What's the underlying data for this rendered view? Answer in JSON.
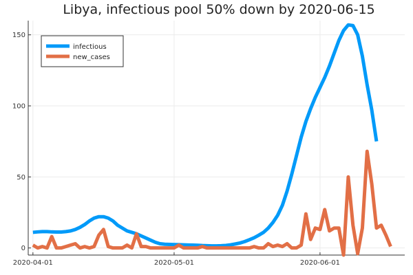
{
  "chart_data": {
    "type": "line",
    "title": "Libya, infectious pool 50% down by 2020-06-15",
    "xlabel": "",
    "ylabel": "",
    "x_start_date": "2020-04-01",
    "x_ticks": [
      "2020-04-01",
      "2020-05-01",
      "2020-06-01"
    ],
    "xlim": [
      "2020-03-31",
      "2020-06-19"
    ],
    "ylim": [
      -5,
      160
    ],
    "y_ticks": [
      0,
      50,
      100,
      150
    ],
    "grid": true,
    "legend_position": "top-left",
    "series": [
      {
        "name": "infectious",
        "color": "#009af9",
        "values": [
          11,
          11.3,
          11.5,
          11.5,
          11.3,
          11.2,
          11.2,
          11.5,
          12,
          13,
          14.5,
          16.5,
          19,
          21,
          22,
          22,
          21,
          19,
          16,
          14,
          12,
          11,
          10,
          8.5,
          7,
          5.5,
          4,
          3,
          2.6,
          2.5,
          2.4,
          2.3,
          2.2,
          2.1,
          2,
          1.9,
          1.7,
          1.6,
          1.5,
          1.5,
          1.6,
          1.8,
          2.2,
          2.8,
          3.5,
          4.5,
          5.8,
          7.2,
          9,
          11,
          14,
          18,
          23,
          30,
          40,
          52,
          65,
          78,
          89,
          98,
          106,
          113,
          120,
          128,
          137,
          146,
          153,
          157,
          156.5,
          150,
          135,
          115,
          97,
          75
        ]
      },
      {
        "name": "new_cases",
        "color": "#e26f46",
        "values": [
          2,
          0,
          1,
          0,
          8,
          0,
          0,
          1,
          2,
          3,
          0,
          1,
          0,
          1,
          9,
          13,
          1,
          0,
          0,
          0,
          2,
          0,
          10,
          1,
          1,
          0,
          0,
          0,
          0,
          0,
          0,
          2,
          0,
          0,
          0,
          0,
          1,
          0,
          0,
          0,
          0,
          0,
          0,
          0,
          0,
          0,
          0,
          1,
          0,
          0,
          3,
          1,
          2,
          1,
          3,
          0,
          0,
          2,
          24,
          6,
          14,
          13,
          27,
          12,
          14,
          14,
          -5,
          50,
          16,
          -4,
          14,
          68,
          45,
          14,
          16,
          9,
          1
        ]
      }
    ]
  }
}
